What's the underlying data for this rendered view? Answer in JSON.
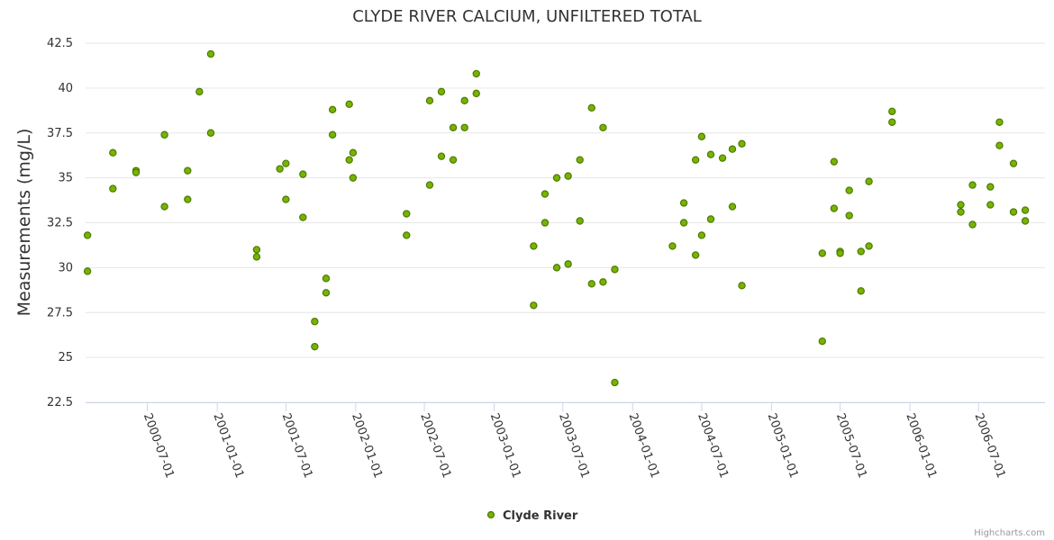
{
  "chart_data": {
    "type": "scatter",
    "title": "CLYDE RIVER CALCIUM, UNFILTERED TOTAL",
    "xlabel": "",
    "ylabel": "Measurements (mg/L)",
    "x_type": "date",
    "ylim": [
      22.5,
      42.5
    ],
    "xlim": [
      "2000-01-20",
      "2006-12-23"
    ],
    "y_ticks": [
      "22.5",
      "25",
      "27.5",
      "30",
      "32.5",
      "35",
      "37.5",
      "40",
      "42.5"
    ],
    "x_ticks": [
      "2000-07-01",
      "2001-01-01",
      "2001-07-01",
      "2002-01-01",
      "2002-07-01",
      "2003-01-01",
      "2003-07-01",
      "2004-01-01",
      "2004-07-01",
      "2005-01-01",
      "2005-07-01",
      "2006-01-01",
      "2006-07-01"
    ],
    "grid": true,
    "legend_position": "bottom-center",
    "marker_color": "#77b300",
    "marker_stroke": "#4d7a00",
    "series": [
      {
        "name": "Clyde River",
        "points": [
          {
            "x": "2000-01-25",
            "y": 31.8
          },
          {
            "x": "2000-01-25",
            "y": 29.8
          },
          {
            "x": "2000-04-01",
            "y": 34.4
          },
          {
            "x": "2000-04-01",
            "y": 36.4
          },
          {
            "x": "2000-06-01",
            "y": 35.4
          },
          {
            "x": "2000-06-01",
            "y": 35.3
          },
          {
            "x": "2000-08-15",
            "y": 37.4
          },
          {
            "x": "2000-08-15",
            "y": 33.4
          },
          {
            "x": "2000-10-15",
            "y": 35.4
          },
          {
            "x": "2000-10-15",
            "y": 33.8
          },
          {
            "x": "2000-11-15",
            "y": 39.8
          },
          {
            "x": "2000-12-15",
            "y": 41.9
          },
          {
            "x": "2000-12-15",
            "y": 37.5
          },
          {
            "x": "2001-04-15",
            "y": 31.0
          },
          {
            "x": "2001-04-15",
            "y": 30.6
          },
          {
            "x": "2001-06-15",
            "y": 35.5
          },
          {
            "x": "2001-07-01",
            "y": 35.8
          },
          {
            "x": "2001-07-01",
            "y": 33.8
          },
          {
            "x": "2001-08-15",
            "y": 35.2
          },
          {
            "x": "2001-08-15",
            "y": 32.8
          },
          {
            "x": "2001-09-15",
            "y": 27.0
          },
          {
            "x": "2001-09-15",
            "y": 25.6
          },
          {
            "x": "2001-10-15",
            "y": 29.4
          },
          {
            "x": "2001-10-15",
            "y": 28.6
          },
          {
            "x": "2001-11-01",
            "y": 38.8
          },
          {
            "x": "2001-11-01",
            "y": 37.4
          },
          {
            "x": "2001-12-15",
            "y": 39.1
          },
          {
            "x": "2001-12-15",
            "y": 36.0
          },
          {
            "x": "2001-12-25",
            "y": 36.4
          },
          {
            "x": "2001-12-25",
            "y": 35.0
          },
          {
            "x": "2002-05-15",
            "y": 33.0
          },
          {
            "x": "2002-05-15",
            "y": 31.8
          },
          {
            "x": "2002-07-15",
            "y": 39.3
          },
          {
            "x": "2002-07-15",
            "y": 34.6
          },
          {
            "x": "2002-08-15",
            "y": 39.8
          },
          {
            "x": "2002-08-15",
            "y": 36.2
          },
          {
            "x": "2002-09-15",
            "y": 37.8
          },
          {
            "x": "2002-09-15",
            "y": 36.0
          },
          {
            "x": "2002-10-15",
            "y": 39.3
          },
          {
            "x": "2002-10-15",
            "y": 37.8
          },
          {
            "x": "2002-11-15",
            "y": 40.8
          },
          {
            "x": "2002-11-15",
            "y": 39.7
          },
          {
            "x": "2003-04-15",
            "y": 31.2
          },
          {
            "x": "2003-04-15",
            "y": 27.9
          },
          {
            "x": "2003-05-15",
            "y": 34.1
          },
          {
            "x": "2003-05-15",
            "y": 32.5
          },
          {
            "x": "2003-06-15",
            "y": 35.0
          },
          {
            "x": "2003-06-15",
            "y": 30.0
          },
          {
            "x": "2003-07-15",
            "y": 35.1
          },
          {
            "x": "2003-07-15",
            "y": 30.2
          },
          {
            "x": "2003-08-15",
            "y": 36.0
          },
          {
            "x": "2003-08-15",
            "y": 32.6
          },
          {
            "x": "2003-09-15",
            "y": 38.9
          },
          {
            "x": "2003-09-15",
            "y": 29.1
          },
          {
            "x": "2003-10-15",
            "y": 37.8
          },
          {
            "x": "2003-10-15",
            "y": 29.2
          },
          {
            "x": "2003-11-15",
            "y": 29.9
          },
          {
            "x": "2003-11-15",
            "y": 23.6
          },
          {
            "x": "2004-04-15",
            "y": 31.2
          },
          {
            "x": "2004-05-15",
            "y": 33.6
          },
          {
            "x": "2004-05-15",
            "y": 32.5
          },
          {
            "x": "2004-06-15",
            "y": 36.0
          },
          {
            "x": "2004-06-15",
            "y": 30.7
          },
          {
            "x": "2004-07-01",
            "y": 37.3
          },
          {
            "x": "2004-07-01",
            "y": 31.8
          },
          {
            "x": "2004-07-25",
            "y": 36.3
          },
          {
            "x": "2004-07-25",
            "y": 32.7
          },
          {
            "x": "2004-08-25",
            "y": 36.1
          },
          {
            "x": "2004-09-20",
            "y": 36.6
          },
          {
            "x": "2004-09-20",
            "y": 33.4
          },
          {
            "x": "2004-10-15",
            "y": 36.9
          },
          {
            "x": "2004-10-15",
            "y": 29.0
          },
          {
            "x": "2005-05-15",
            "y": 30.8
          },
          {
            "x": "2005-05-15",
            "y": 25.9
          },
          {
            "x": "2005-06-15",
            "y": 35.9
          },
          {
            "x": "2005-06-15",
            "y": 33.3
          },
          {
            "x": "2005-07-01",
            "y": 30.9
          },
          {
            "x": "2005-07-01",
            "y": 30.8
          },
          {
            "x": "2005-07-25",
            "y": 34.3
          },
          {
            "x": "2005-07-25",
            "y": 32.9
          },
          {
            "x": "2005-08-25",
            "y": 30.9
          },
          {
            "x": "2005-08-25",
            "y": 28.7
          },
          {
            "x": "2005-09-15",
            "y": 34.8
          },
          {
            "x": "2005-09-15",
            "y": 31.2
          },
          {
            "x": "2005-11-15",
            "y": 38.7
          },
          {
            "x": "2005-11-15",
            "y": 38.1
          },
          {
            "x": "2006-05-15",
            "y": 33.5
          },
          {
            "x": "2006-05-15",
            "y": 33.1
          },
          {
            "x": "2006-06-15",
            "y": 34.6
          },
          {
            "x": "2006-06-15",
            "y": 32.4
          },
          {
            "x": "2006-08-01",
            "y": 34.5
          },
          {
            "x": "2006-08-01",
            "y": 33.5
          },
          {
            "x": "2006-08-25",
            "y": 38.1
          },
          {
            "x": "2006-08-25",
            "y": 36.8
          },
          {
            "x": "2006-10-01",
            "y": 35.8
          },
          {
            "x": "2006-10-01",
            "y": 33.1
          },
          {
            "x": "2006-11-01",
            "y": 33.2
          },
          {
            "x": "2006-11-01",
            "y": 32.6
          }
        ]
      }
    ]
  },
  "credits": "Highcharts.com"
}
